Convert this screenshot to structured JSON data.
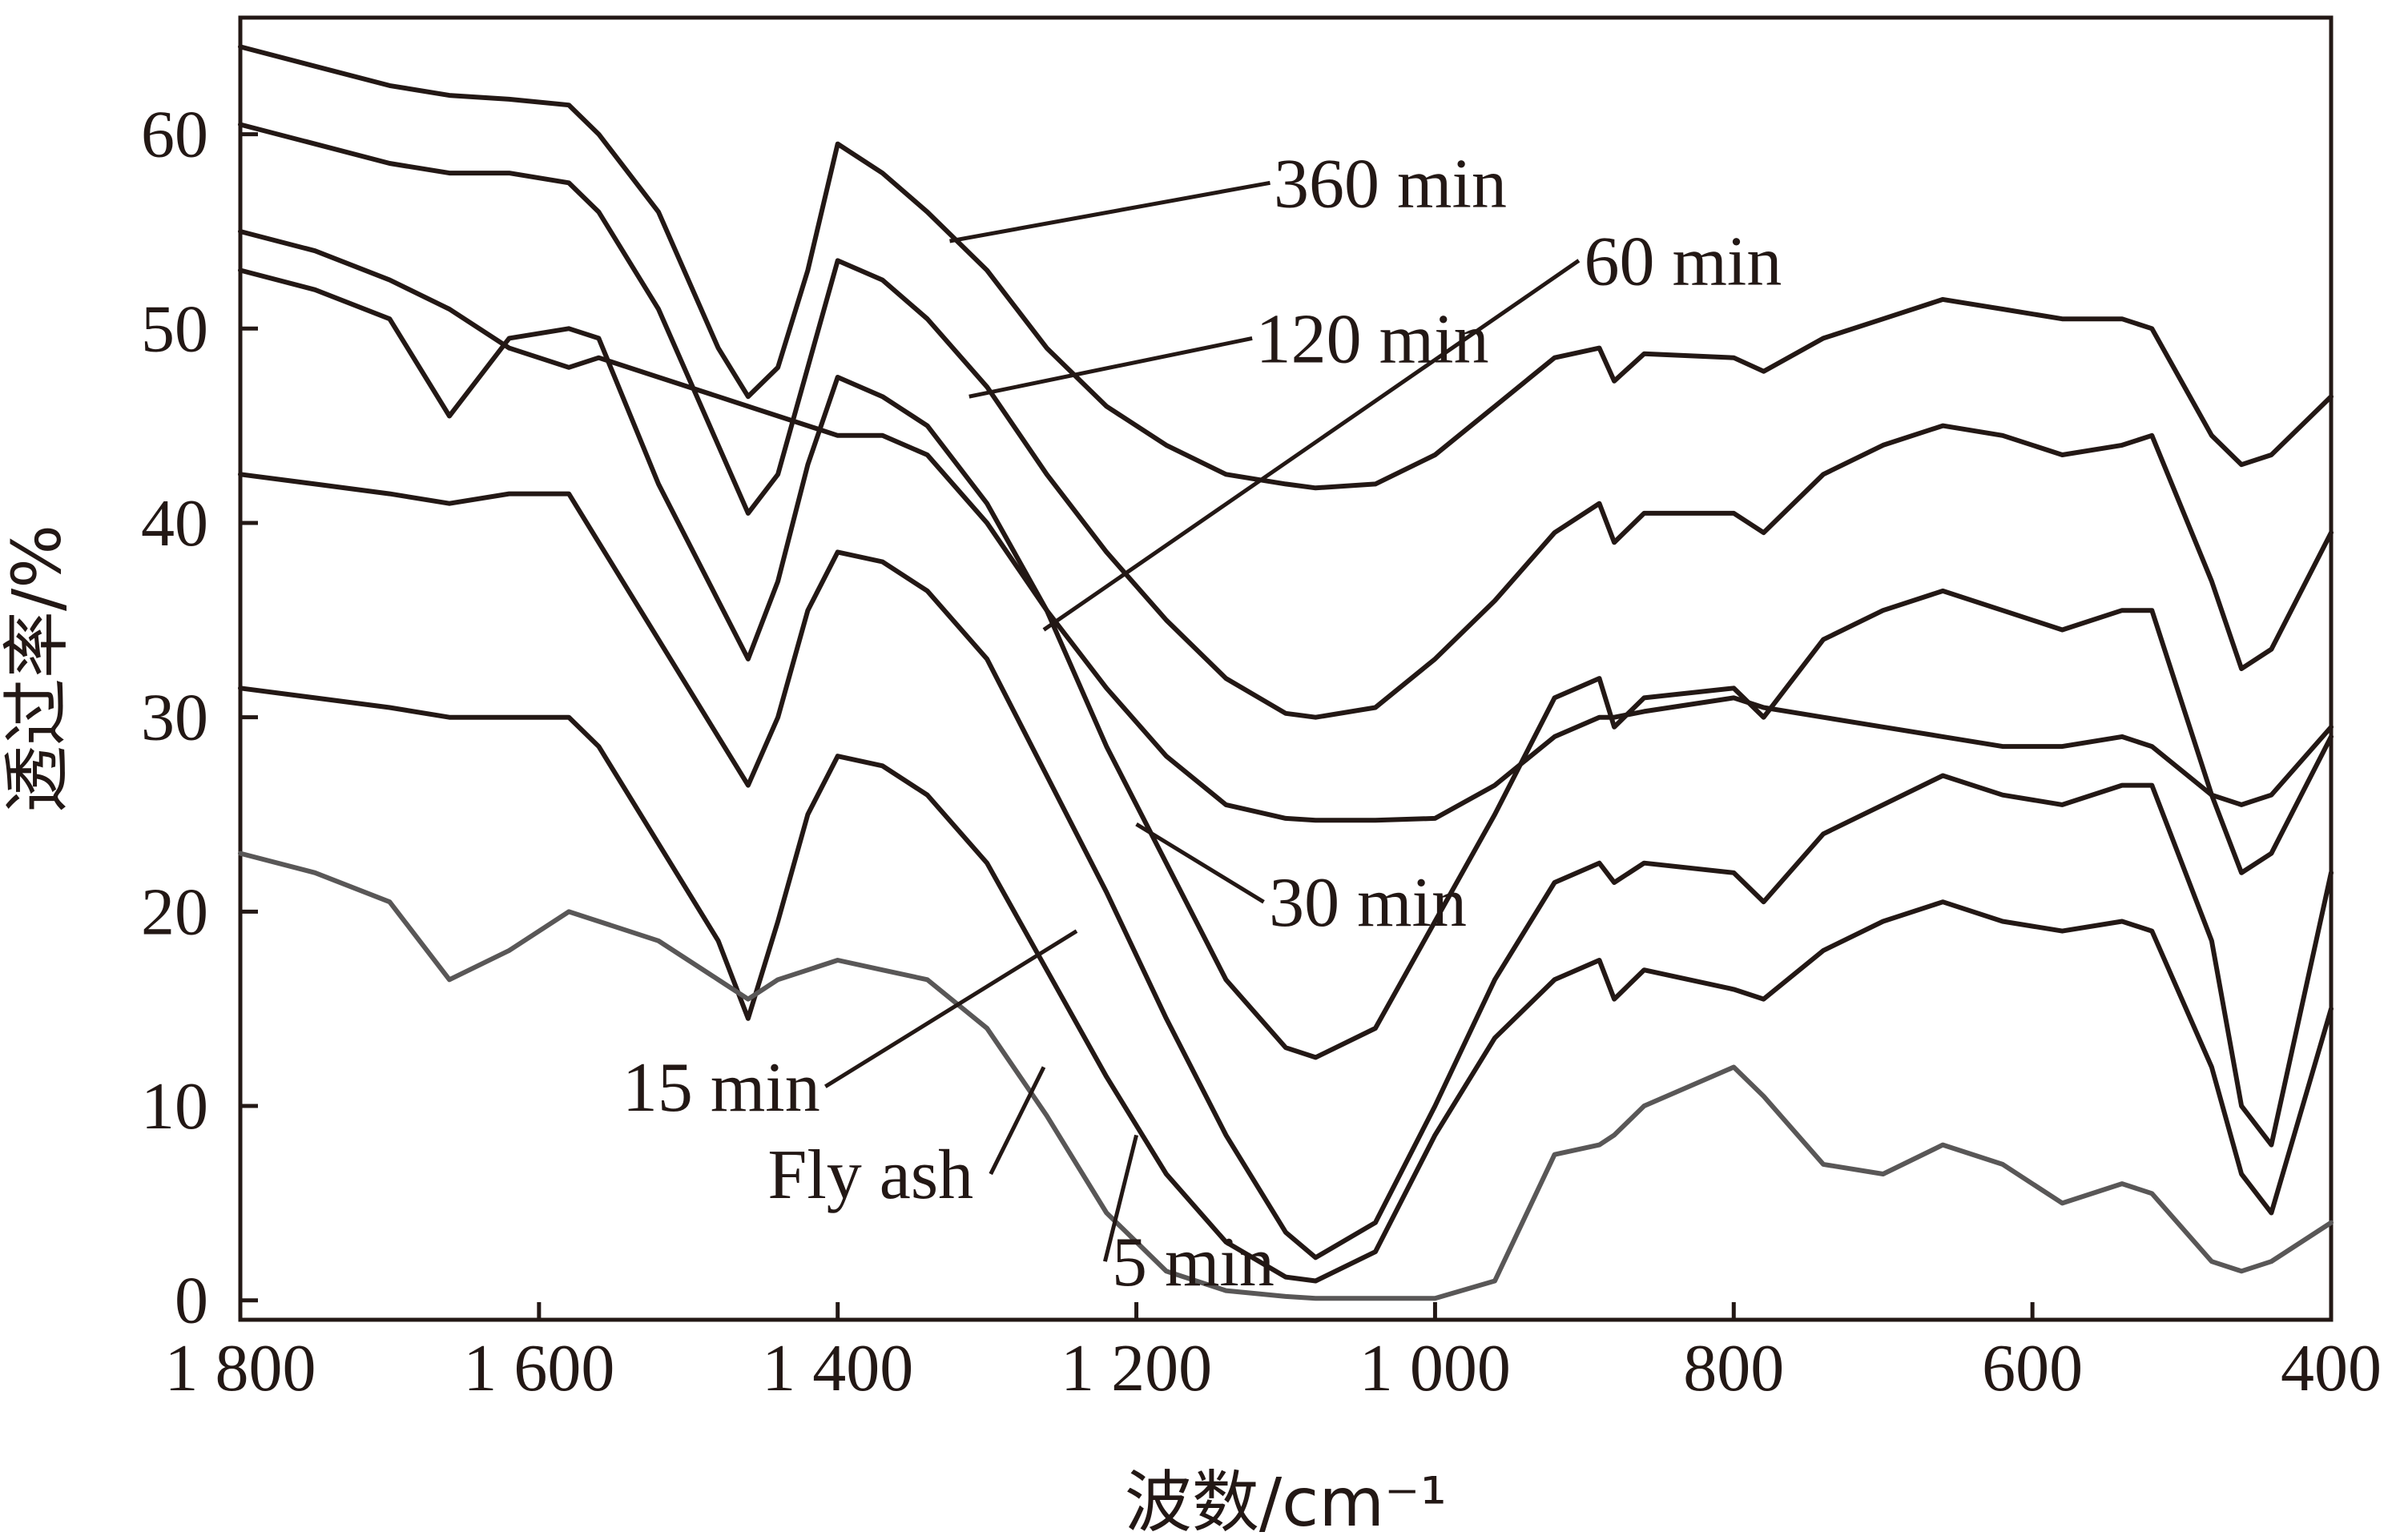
{
  "chart_data": {
    "type": "line",
    "title": "",
    "xlabel": "波数/cm⁻¹",
    "ylabel": "透过率/%",
    "xlim": [
      1800,
      400
    ],
    "ylim": [
      -1,
      66
    ],
    "x_ticks": [
      {
        "value": 1800,
        "label": "1 800"
      },
      {
        "value": 1600,
        "label": "1 600"
      },
      {
        "value": 1400,
        "label": "1 400"
      },
      {
        "value": 1200,
        "label": "1 200"
      },
      {
        "value": 1000,
        "label": "1 000"
      },
      {
        "value": 800,
        "label": "800"
      },
      {
        "value": 600,
        "label": "600"
      },
      {
        "value": 400,
        "label": "400"
      }
    ],
    "y_ticks": [
      {
        "value": 0,
        "label": "0"
      },
      {
        "value": 10,
        "label": "10"
      },
      {
        "value": 20,
        "label": "20"
      },
      {
        "value": 30,
        "label": "30"
      },
      {
        "value": 40,
        "label": "40"
      },
      {
        "value": 50,
        "label": "50"
      },
      {
        "value": 60,
        "label": "60"
      }
    ],
    "grid": false,
    "x": [
      1800,
      1750,
      1700,
      1660,
      1620,
      1580,
      1560,
      1520,
      1480,
      1460,
      1440,
      1420,
      1400,
      1370,
      1340,
      1300,
      1260,
      1220,
      1180,
      1140,
      1100,
      1080,
      1040,
      1000,
      960,
      920,
      890,
      880,
      860,
      800,
      780,
      740,
      700,
      660,
      620,
      580,
      540,
      520,
      480,
      460,
      440,
      400
    ],
    "series": [
      {
        "name": "360 min",
        "color": "#231815",
        "values": [
          64.5,
          63.5,
          62.5,
          62.0,
          61.8,
          61.5,
          60.0,
          56.0,
          49.0,
          46.5,
          48.0,
          53.0,
          59.5,
          58.0,
          56.0,
          53.0,
          49.0,
          46.0,
          44.0,
          42.5,
          42.0,
          41.8,
          42.0,
          43.5,
          46.0,
          48.5,
          49.0,
          47.3,
          48.7,
          48.5,
          47.8,
          49.5,
          50.5,
          51.5,
          51.0,
          50.5,
          50.5,
          50.0,
          44.5,
          43.0,
          43.5,
          46.5
        ]
      },
      {
        "name": "120 min",
        "color": "#231815",
        "values": [
          60.5,
          59.5,
          58.5,
          58.0,
          58.0,
          57.5,
          56.0,
          51.0,
          44.0,
          40.5,
          42.5,
          48.0,
          53.5,
          52.5,
          50.5,
          47.0,
          42.5,
          38.5,
          35.0,
          32.0,
          30.2,
          30.0,
          30.5,
          33.0,
          36.0,
          39.5,
          41.0,
          39.0,
          40.5,
          40.5,
          39.5,
          42.5,
          44.0,
          45.0,
          44.5,
          43.5,
          44.0,
          44.5,
          37.0,
          32.5,
          33.5,
          39.5
        ]
      },
      {
        "name": "60 min",
        "color": "#231815",
        "values": [
          55.0,
          54.0,
          52.5,
          51.0,
          49.0,
          48.0,
          48.5,
          47.5,
          46.5,
          46.0,
          45.5,
          45.0,
          44.5,
          44.5,
          43.5,
          40.0,
          35.5,
          31.5,
          28.0,
          25.5,
          24.8,
          24.7,
          24.7,
          24.8,
          26.5,
          29.0,
          30.0,
          30.0,
          30.3,
          31.0,
          30.5,
          30.0,
          29.5,
          29.0,
          28.5,
          28.5,
          29.0,
          28.5,
          26.0,
          25.5,
          26.0,
          29.5
        ]
      },
      {
        "name": "30 min",
        "color": "#231815",
        "values": [
          53.0,
          52.0,
          50.5,
          45.5,
          49.5,
          50.0,
          49.5,
          42.0,
          36.0,
          33.0,
          37.0,
          43.0,
          47.5,
          46.5,
          45.0,
          41.0,
          35.5,
          28.5,
          22.5,
          16.5,
          13.0,
          12.5,
          14.0,
          19.5,
          25.0,
          31.0,
          32.0,
          29.5,
          31.0,
          31.5,
          30.0,
          34.0,
          35.5,
          36.5,
          35.5,
          34.5,
          35.5,
          35.5,
          26.0,
          22.0,
          23.0,
          29.0
        ]
      },
      {
        "name": "15 min",
        "color": "#231815",
        "values": [
          42.5,
          42.0,
          41.5,
          41.0,
          41.5,
          41.5,
          39.0,
          34.0,
          29.0,
          26.5,
          30.0,
          35.5,
          38.5,
          38.0,
          36.5,
          33.0,
          27.0,
          21.0,
          14.5,
          8.5,
          3.5,
          2.2,
          4.0,
          10.0,
          16.5,
          21.5,
          22.5,
          21.5,
          22.5,
          22.0,
          20.5,
          24.0,
          25.5,
          27.0,
          26.0,
          25.5,
          26.5,
          26.5,
          18.5,
          10.0,
          8.0,
          22.0
        ]
      },
      {
        "name": "5 min",
        "color": "#231815",
        "values": [
          31.5,
          31.0,
          30.5,
          30.0,
          30.0,
          30.0,
          28.5,
          23.5,
          18.5,
          14.5,
          19.5,
          25.0,
          28.0,
          27.5,
          26.0,
          22.5,
          17.0,
          11.5,
          6.5,
          3.0,
          1.2,
          1.0,
          2.5,
          8.5,
          13.5,
          16.5,
          17.5,
          15.5,
          17.0,
          16.0,
          15.5,
          18.0,
          19.5,
          20.5,
          19.5,
          19.0,
          19.5,
          19.0,
          12.0,
          6.5,
          4.5,
          15.0
        ]
      },
      {
        "name": "Fly ash",
        "color": "#595757",
        "values": [
          23.0,
          22.0,
          20.5,
          16.5,
          18.0,
          20.0,
          19.5,
          18.5,
          16.5,
          15.5,
          16.5,
          17.0,
          17.5,
          17.0,
          16.5,
          14.0,
          9.5,
          4.5,
          1.5,
          0.5,
          0.2,
          0.1,
          0.1,
          0.1,
          1.0,
          7.5,
          8.0,
          8.5,
          10.0,
          12.0,
          10.5,
          7.0,
          6.5,
          8.0,
          7.0,
          5.0,
          6.0,
          5.5,
          2.0,
          1.5,
          2.0,
          4.0
        ]
      }
    ],
    "annotations": [
      {
        "text": "360 min",
        "series": "360 min",
        "label_x": 1030,
        "label_y": 57.5,
        "point_x": 1325,
        "point_y": 54.5
      },
      {
        "text": "120 min",
        "series": "120 min",
        "label_x": 1042,
        "label_y": 49.5,
        "point_x": 1312,
        "point_y": 46.5
      },
      {
        "text": "60 min",
        "series": "60 min",
        "label_x": 834,
        "label_y": 53.5,
        "point_x": 1262,
        "point_y": 34.5
      },
      {
        "text": "30 min",
        "series": "30 min",
        "label_x": 1045,
        "label_y": 20.5,
        "point_x": 1200,
        "point_y": 24.5
      },
      {
        "text": "15 min",
        "series": "15 min",
        "label_x": 1478,
        "label_y": 11.0,
        "point_x": 1240,
        "point_y": 19.0
      },
      {
        "text": "Fly ash",
        "series": "Fly ash",
        "label_x": 1378,
        "label_y": 6.5,
        "point_x": 1262,
        "point_y": 12.0
      },
      {
        "text": "5 min",
        "series": "5 min",
        "label_x": 1162,
        "label_y": 2.0,
        "point_x": 1200,
        "point_y": 8.5
      }
    ]
  }
}
